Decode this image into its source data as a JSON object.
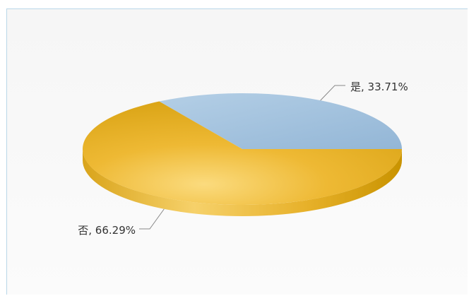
{
  "chart_data": {
    "type": "pie",
    "title": "",
    "series": [
      {
        "name": "",
        "values": [
          33.71,
          66.29
        ]
      }
    ],
    "categories": [
      "是",
      "否"
    ],
    "labels": [
      "是, 33.71%",
      "否, 66.29%"
    ],
    "legend": "none",
    "colors": [
      "#a9c6e0",
      "#e8b422"
    ]
  }
}
